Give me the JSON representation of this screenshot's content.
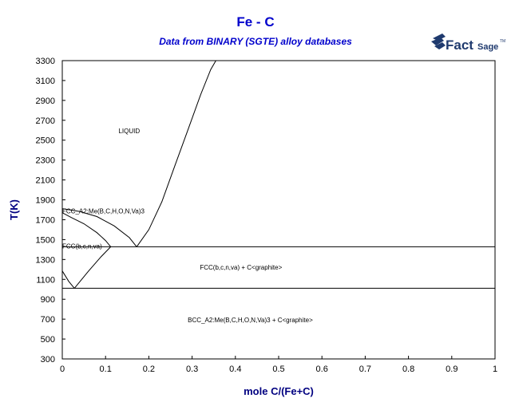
{
  "header": {
    "title": "Fe - C",
    "subtitle": "Data from BINARY (SGTE) alloy databases",
    "logo_text_fact": "Fact",
    "logo_text_sage": "Sage",
    "logo_tm": "TM"
  },
  "colors": {
    "title": "#0000cc",
    "axis_label": "#000080",
    "logo": "#1f3a6e",
    "lines": "#000000"
  },
  "chart_data": {
    "type": "line",
    "title": "Fe - C",
    "subtitle": "Data from BINARY (SGTE) alloy databases",
    "xlabel": "mole C/(Fe+C)",
    "ylabel": "T(K)",
    "xlim": [
      0,
      1
    ],
    "ylim": [
      300,
      3300
    ],
    "xticks": [
      0,
      0.1,
      0.2,
      0.3,
      0.4,
      0.5,
      0.6,
      0.7,
      0.8,
      0.9,
      1
    ],
    "xtick_labels": [
      "0",
      "0.1",
      "0.2",
      "0.3",
      "0.4",
      "0.5",
      "0.6",
      "0.7",
      "0.8",
      "0.9",
      "1"
    ],
    "yticks": [
      300,
      500,
      700,
      900,
      1100,
      1300,
      1500,
      1700,
      1900,
      2100,
      2300,
      2500,
      2700,
      2900,
      3100,
      3300
    ],
    "grid": false,
    "series": [
      {
        "values": [
          [
            0.0,
            1811
          ],
          [
            0.04,
            1783
          ],
          [
            0.08,
            1732
          ],
          [
            0.12,
            1638
          ],
          [
            0.155,
            1520
          ],
          [
            0.172,
            1428
          ]
        ]
      },
      {
        "values": [
          [
            0.172,
            1428
          ],
          [
            0.2,
            1600
          ],
          [
            0.23,
            1880
          ],
          [
            0.26,
            2240
          ],
          [
            0.29,
            2600
          ],
          [
            0.32,
            2960
          ],
          [
            0.343,
            3210
          ],
          [
            0.355,
            3300
          ]
        ]
      },
      {
        "values": [
          [
            0.0,
            1770
          ],
          [
            0.02,
            1725
          ],
          [
            0.05,
            1660
          ],
          [
            0.08,
            1570
          ],
          [
            0.1,
            1490
          ],
          [
            0.112,
            1428
          ]
        ]
      },
      {
        "values": [
          [
            0.0,
            1185
          ],
          [
            0.015,
            1080
          ],
          [
            0.028,
            1011
          ]
        ]
      },
      {
        "values": [
          [
            0.028,
            1011
          ],
          [
            0.06,
            1180
          ],
          [
            0.09,
            1330
          ],
          [
            0.112,
            1428
          ]
        ]
      },
      {
        "values": [
          [
            0.0,
            1428
          ],
          [
            1.0,
            1428
          ]
        ]
      },
      {
        "values": [
          [
            0.0,
            1011
          ],
          [
            1.0,
            1011
          ]
        ]
      }
    ],
    "annotations": [
      {
        "text": "LIQUID",
        "x": 0.13,
        "y": 2570
      },
      {
        "text": "FCC_A2:Me(B,C,H,O,N,Va)3",
        "x": 0.0,
        "y": 1763
      },
      {
        "text": "FCC(b,c,n,va)",
        "x": 0.0,
        "y": 1410
      },
      {
        "text": "FCC(b,c,n,va) + C<graphite>",
        "x": 0.318,
        "y": 1200
      },
      {
        "text": "BCC_A2:Me(B,C,H,O,N,Va)3 + C<graphite>",
        "x": 0.29,
        "y": 670
      }
    ]
  }
}
